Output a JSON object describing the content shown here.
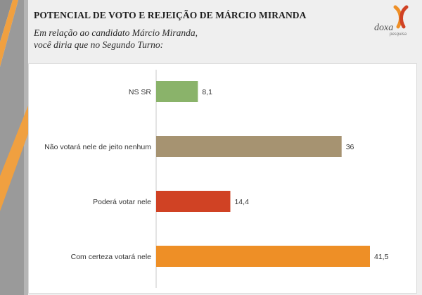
{
  "header": {
    "title": "POTENCIAL DE VOTO E REJEIÇÃO DE MÁRCIO MIRANDA",
    "subtitle_line1": "Em relação ao candidato Márcio Miranda,",
    "subtitle_line2": "você diria que no Segundo Turno:"
  },
  "logo": {
    "name": "doxa",
    "tagline": "pesquisa"
  },
  "colors": {
    "stripe_gray": "#8f8f8f",
    "stripe_orange": "#f0a040",
    "accent_orange": "#ee8f26"
  },
  "chart_data": {
    "type": "bar",
    "orientation": "horizontal",
    "categories": [
      "NS SR",
      "Não votará nele de jeito nenhum",
      "Poderá votar nele",
      "Com certeza votará nele"
    ],
    "values": [
      8.1,
      36,
      14.4,
      41.5
    ],
    "value_labels": [
      "8,1",
      "36",
      "14,4",
      "41,5"
    ],
    "bar_colors": [
      "#8ab36a",
      "#a69371",
      "#d04224",
      "#ee8f26"
    ],
    "xlim": [
      0,
      41.5
    ],
    "grid": false,
    "legend": "none",
    "title": "",
    "xlabel": "",
    "ylabel": ""
  }
}
